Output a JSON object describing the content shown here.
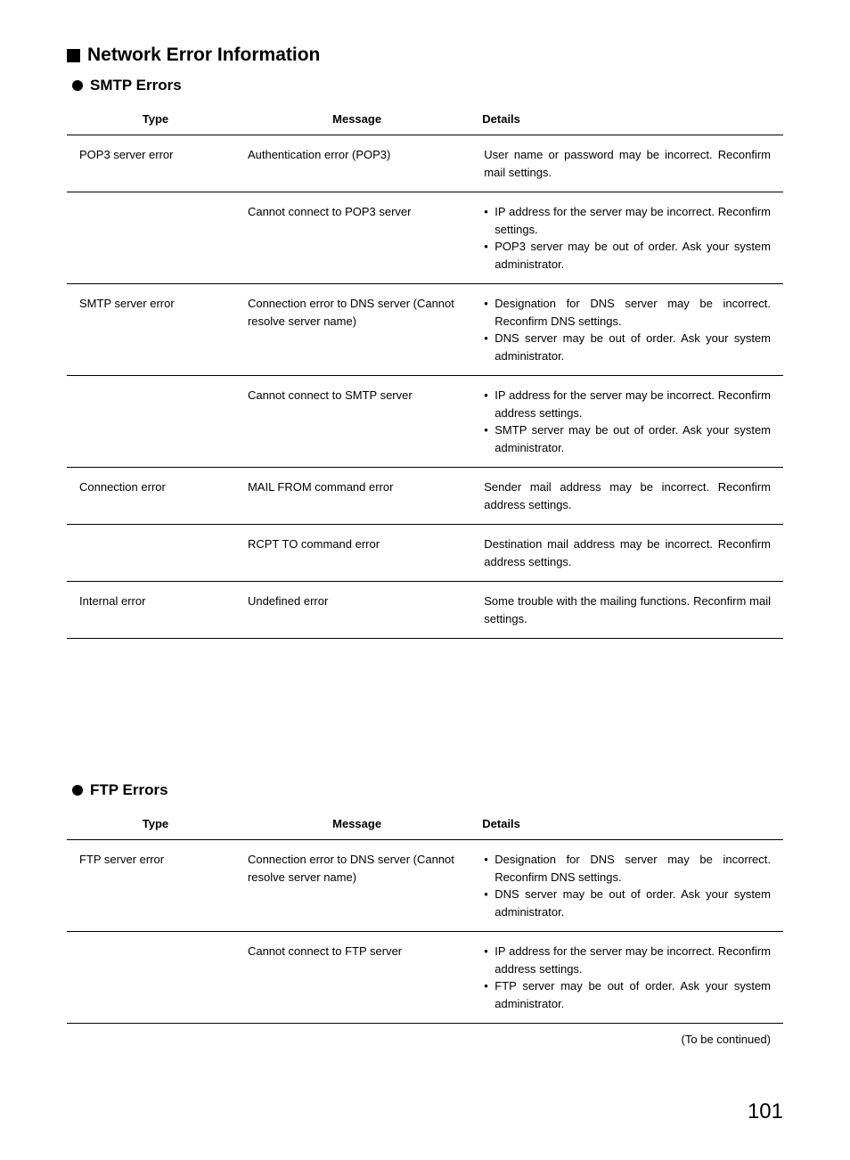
{
  "main_heading": "Network Error Information",
  "sections": [
    {
      "heading": "SMTP Errors",
      "columns": {
        "type": "Type",
        "message": "Message",
        "details": "Details"
      },
      "groups": [
        {
          "type": "POP3 server error",
          "rows": [
            {
              "message": "Authentication error (POP3)",
              "details_text": "User name or password may be incorrect. Reconfirm mail settings.",
              "details_list": null
            },
            {
              "message": "Cannot connect to POP3 server",
              "details_text": null,
              "details_list": [
                "IP address for the server may be incorrect. Reconfirm settings.",
                "POP3 server may be out of order. Ask your system administrator."
              ]
            }
          ]
        },
        {
          "type": "SMTP server error",
          "rows": [
            {
              "message": "Connection error to DNS server (Cannot resolve server name)",
              "details_text": null,
              "details_list": [
                "Designation for DNS server may be incorrect. Reconfirm DNS settings.",
                "DNS server may be out of order. Ask your system administrator."
              ]
            },
            {
              "message": "Cannot connect to SMTP server",
              "details_text": null,
              "details_list": [
                "IP address for the server may be incorrect. Reconfirm address settings.",
                "SMTP server may be out of order. Ask your system administrator."
              ]
            }
          ]
        },
        {
          "type": "Connection error",
          "rows": [
            {
              "message": "MAIL FROM command error",
              "details_text": "Sender mail address may be incorrect. Reconfirm address settings.",
              "details_list": null
            },
            {
              "message": "RCPT TO command error",
              "details_text": "Destination mail address may be incorrect. Reconfirm address settings.",
              "details_list": null
            }
          ]
        },
        {
          "type": "Internal error",
          "rows": [
            {
              "message": "Undefined error",
              "details_text": "Some trouble with the mailing functions. Reconfirm mail settings.",
              "details_list": null
            }
          ]
        }
      ]
    },
    {
      "heading": "FTP Errors",
      "columns": {
        "type": "Type",
        "message": "Message",
        "details": "Details"
      },
      "groups": [
        {
          "type": "FTP server error",
          "rows": [
            {
              "message": "Connection error to DNS server (Cannot resolve server name)",
              "details_text": null,
              "details_list": [
                "Designation for DNS server may be incorrect. Reconfirm DNS settings.",
                "DNS server may be out of order. Ask your system administrator."
              ]
            },
            {
              "message": "Cannot connect to FTP server",
              "details_text": null,
              "details_list": [
                "IP address for the server may be incorrect. Reconfirm address settings.",
                "FTP server may be out of order. Ask your system administrator."
              ]
            }
          ]
        }
      ]
    }
  ],
  "continued_text": "(To be continued)",
  "page_number": "101"
}
